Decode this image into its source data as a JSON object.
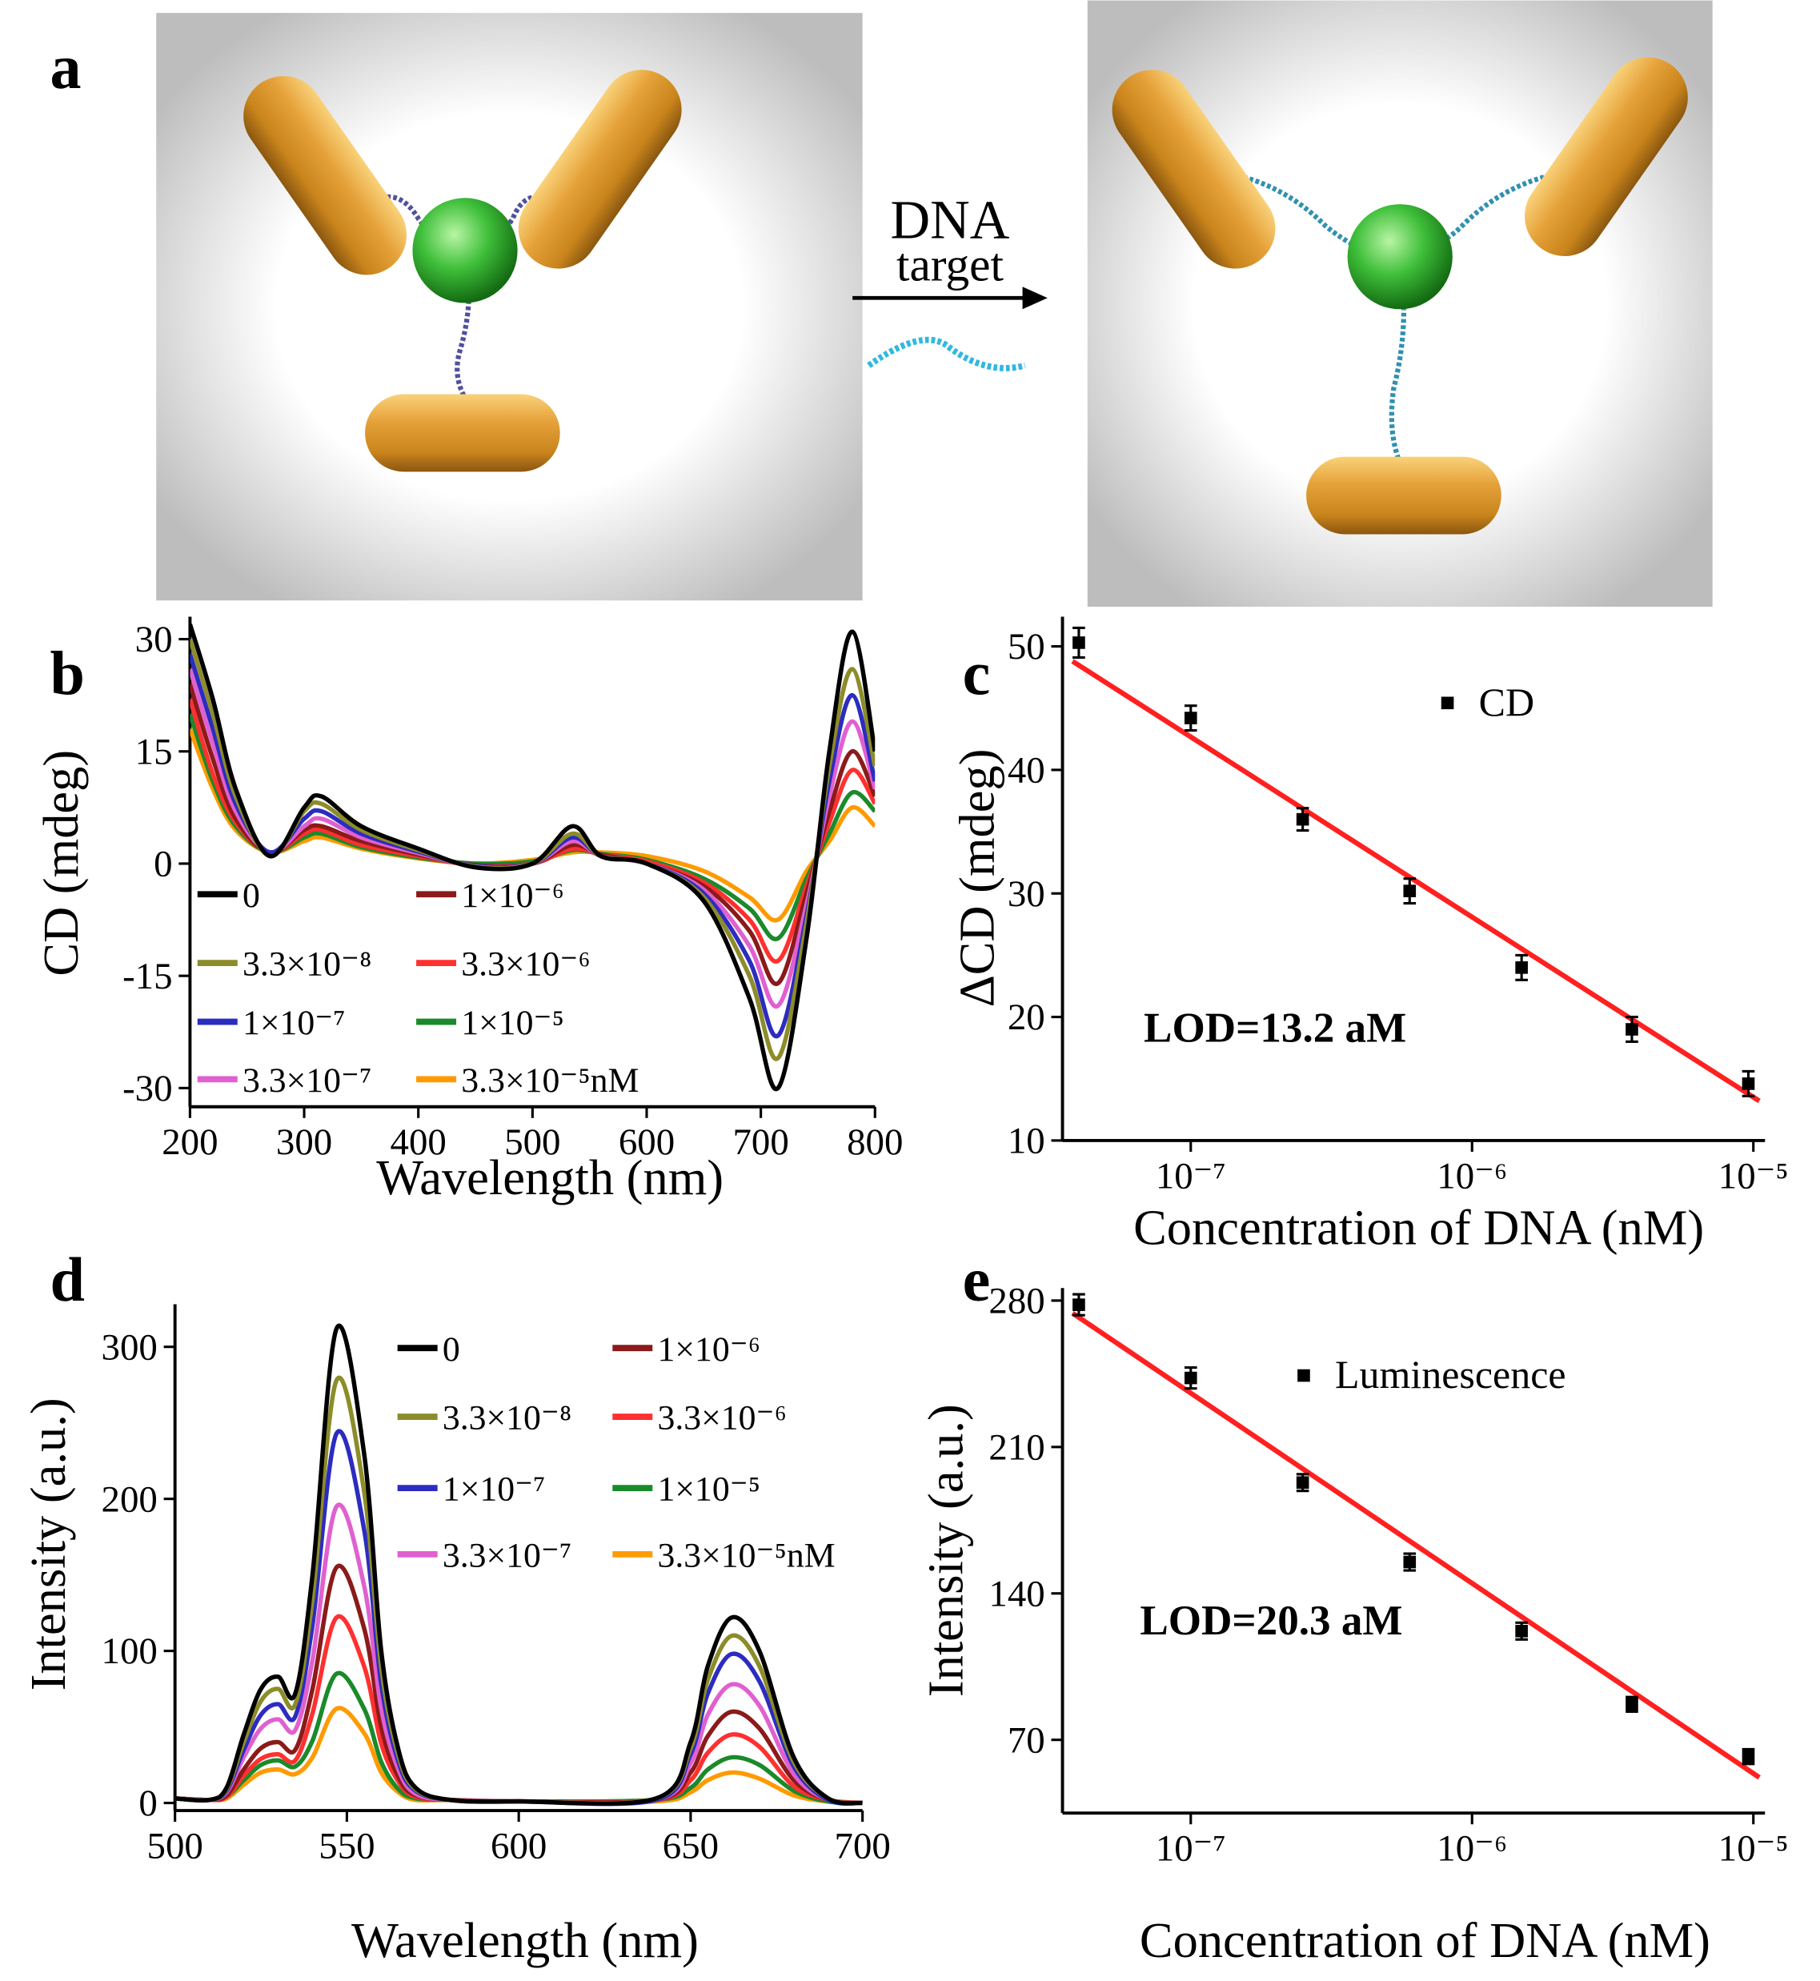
{
  "panel_a": {
    "label": "a",
    "arrow_text": [
      "DNA",
      "target"
    ]
  },
  "chart_data": [
    {
      "panel": "b",
      "type": "line",
      "x_label": "Wavelength (nm)",
      "y_label": "CD (mdeg)",
      "x": [
        200,
        220,
        240,
        270,
        300,
        315,
        350,
        400,
        450,
        500,
        535,
        560,
        600,
        650,
        690,
        715,
        740,
        760,
        780,
        800
      ],
      "xlim": [
        200,
        800
      ],
      "ylim": [
        -32.5,
        33
      ],
      "xticks": [
        200,
        300,
        400,
        500,
        600,
        700,
        800
      ],
      "yticks": [
        -30,
        -15,
        0,
        15,
        30
      ],
      "series": [
        {
          "name": "0",
          "color": "#000000",
          "values": [
            32,
            22,
            10,
            1,
            7.5,
            9,
            5,
            2,
            -0.5,
            0,
            5,
            1,
            0,
            -5,
            -18,
            -30,
            -10,
            15,
            31,
            15
          ]
        },
        {
          "name": "3.3×10⁻⁸",
          "color": "#8c8c2a",
          "values": [
            30,
            20,
            9,
            1,
            7,
            8,
            4.5,
            1.8,
            -0.4,
            0,
            4,
            1,
            0,
            -4.5,
            -15,
            -26,
            -8,
            13,
            26,
            13
          ]
        },
        {
          "name": "1×10⁻⁷",
          "color": "#2c2cc0",
          "values": [
            28,
            18,
            8,
            1.5,
            6,
            7,
            4,
            1.6,
            -0.3,
            0,
            3.5,
            1,
            0,
            -4,
            -13,
            -23,
            -7,
            11,
            22.5,
            11
          ]
        },
        {
          "name": "3.3×10⁻⁷",
          "color": "#e060d0",
          "values": [
            26,
            16,
            7,
            1.5,
            5,
            6,
            3.5,
            1.4,
            -0.3,
            0,
            3,
            1,
            0,
            -3.5,
            -11,
            -19,
            -5.5,
            9,
            19,
            10
          ]
        },
        {
          "name": "1×10⁻⁶",
          "color": "#8b1a1a",
          "values": [
            24,
            14,
            6,
            1.5,
            4.5,
            5,
            3,
            1.2,
            -0.2,
            0,
            2.5,
            1.2,
            0,
            -3,
            -9,
            -16,
            -4,
            7,
            15,
            9
          ]
        },
        {
          "name": "3.3×10⁻⁶",
          "color": "#ff3030",
          "values": [
            22,
            12,
            5.5,
            1.5,
            4,
            4.5,
            2.5,
            1,
            -0.2,
            0,
            2,
            1.2,
            0.3,
            -2.5,
            -7.5,
            -13,
            -3,
            5.5,
            12.5,
            8
          ]
        },
        {
          "name": "1×10⁻⁵",
          "color": "#1a8a2a",
          "values": [
            20,
            11,
            5,
            1.5,
            3.5,
            4,
            2.2,
            0.8,
            0,
            0.3,
            1.8,
            1.3,
            0.5,
            -2,
            -6,
            -10,
            -2,
            4,
            9.5,
            7
          ]
        },
        {
          "name": "3.3×10⁻⁵nM",
          "color": "#ff9a00",
          "values": [
            18,
            10,
            4.5,
            1.5,
            3,
            3.5,
            2,
            0.7,
            0,
            0.5,
            1.5,
            1.5,
            1,
            -1,
            -4.5,
            -7.5,
            -1,
            3,
            7.5,
            5
          ]
        }
      ]
    },
    {
      "panel": "c",
      "type": "scatter",
      "xscale": "log",
      "x_label": "Concentration of DNA (nM)",
      "y_label": "ΔCD (mdeg)",
      "x": [
        4e-08,
        1e-07,
        2.5e-07,
        6e-07,
        1.5e-06,
        3.7e-06,
        9.6e-06
      ],
      "xlim": [
        3.5e-08,
        1.1e-05
      ],
      "ylim": [
        10,
        52.4
      ],
      "xticks": [
        {
          "value": 1e-07,
          "label": "10⁻⁷"
        },
        {
          "value": 1e-06,
          "label": "10⁻⁶"
        },
        {
          "value": 1e-05,
          "label": "10⁻⁵"
        }
      ],
      "yticks": [
        10,
        20,
        30,
        40,
        50
      ],
      "series": [
        {
          "name": "CD",
          "color": "#000000",
          "values": [
            50.3,
            44.2,
            36,
            30.2,
            24,
            19,
            14.6
          ],
          "errors": [
            1.2,
            1,
            0.9,
            1,
            1,
            1,
            1
          ]
        }
      ],
      "fit": {
        "color": "#ff2020",
        "x": [
          3.8e-08,
          1.05e-05
        ],
        "values": [
          48.8,
          13.2
        ]
      },
      "annotation": "LOD=13.2 aM"
    },
    {
      "panel": "d",
      "type": "line",
      "x_label": "Wavelength (nm)",
      "y_label": "Intensity (a.u.)",
      "x": [
        500,
        510,
        515,
        520,
        525,
        530,
        535,
        540,
        547,
        555,
        560,
        565,
        570,
        580,
        600,
        640,
        650,
        655,
        662,
        670,
        680,
        690,
        700
      ],
      "xlim": [
        500,
        700
      ],
      "ylim": [
        -5,
        328
      ],
      "xticks": [
        500,
        550,
        600,
        650,
        700
      ],
      "yticks": [
        0,
        100,
        200,
        300
      ],
      "series": [
        {
          "name": "0",
          "color": "#000000",
          "values": [
            3,
            2,
            10,
            45,
            75,
            83,
            72,
            150,
            312,
            230,
            100,
            35,
            10,
            2,
            1,
            3,
            40,
            90,
            122,
            100,
            30,
            3,
            0
          ]
        },
        {
          "name": "3.3×10⁻⁸",
          "color": "#8c8c2a",
          "values": [
            3,
            2,
            9,
            40,
            67,
            75,
            65,
            134,
            278,
            205,
            89,
            31,
            9,
            2,
            1,
            3,
            36,
            81,
            110,
            90,
            27,
            3,
            0
          ]
        },
        {
          "name": "1×10⁻⁷",
          "color": "#2c2cc0",
          "values": [
            3,
            2,
            8,
            35,
            58,
            65,
            57,
            117,
            243,
            180,
            78,
            27,
            8,
            2,
            1,
            2,
            32,
            72,
            98,
            80,
            24,
            2,
            0
          ]
        },
        {
          "name": "3.3×10⁻⁷",
          "color": "#e060d0",
          "values": [
            3,
            2,
            7,
            30,
            49,
            55,
            48,
            94,
            195,
            143,
            62,
            22,
            6,
            2,
            1,
            2,
            26,
            58,
            78,
            64,
            19,
            2,
            0
          ]
        },
        {
          "name": "1×10⁻⁶",
          "color": "#8b1a1a",
          "values": [
            3,
            2,
            5,
            22,
            36,
            40,
            35,
            75,
            155,
            115,
            50,
            17,
            5,
            2,
            1,
            2,
            20,
            44,
            60,
            49,
            15,
            2,
            0
          ]
        },
        {
          "name": "3.3×10⁻⁶",
          "color": "#ff3030",
          "values": [
            3,
            2,
            4,
            18,
            29,
            32,
            28,
            59,
            122,
            90,
            39,
            14,
            4,
            2,
            1,
            2,
            15,
            33,
            45,
            37,
            11,
            2,
            0
          ]
        },
        {
          "name": "1×10⁻⁵",
          "color": "#1a8a2a",
          "values": [
            3,
            2,
            4,
            15,
            25,
            28,
            24,
            41,
            85,
            62,
            27,
            9,
            3,
            2,
            1,
            2,
            10,
            22,
            30,
            25,
            8,
            1,
            0
          ]
        },
        {
          "name": "3.3×10⁻⁵nM",
          "color": "#ff9a00",
          "values": [
            3,
            2,
            3,
            12,
            20,
            22,
            19,
            30,
            62,
            46,
            20,
            7,
            2,
            2,
            1,
            1,
            7,
            15,
            20,
            16,
            5,
            1,
            0
          ]
        }
      ]
    },
    {
      "panel": "e",
      "type": "scatter",
      "xscale": "log",
      "x_label": "Concentration of DNA (nM)",
      "y_label": "Intensity (a.u.)",
      "x": [
        4e-08,
        1e-07,
        2.5e-07,
        6e-07,
        1.5e-06,
        3.7e-06,
        9.6e-06
      ],
      "xlim": [
        3.5e-08,
        1.1e-05
      ],
      "ylim": [
        35,
        286
      ],
      "xticks": [
        {
          "value": 1e-07,
          "label": "10⁻⁷"
        },
        {
          "value": 1e-06,
          "label": "10⁻⁶"
        },
        {
          "value": 1e-05,
          "label": "10⁻⁵"
        }
      ],
      "yticks": [
        70,
        140,
        210,
        280
      ],
      "series": [
        {
          "name": "Luminescence",
          "color": "#000000",
          "values": [
            278,
            243,
            193,
            155,
            122,
            87,
            62
          ],
          "errors": [
            5,
            5,
            4,
            4,
            4,
            3.5,
            3.5
          ]
        }
      ],
      "fit": {
        "color": "#ff2020",
        "x": [
          3.8e-08,
          1.05e-05
        ],
        "values": [
          274,
          52
        ]
      },
      "annotation": "LOD=20.3 aM"
    }
  ]
}
